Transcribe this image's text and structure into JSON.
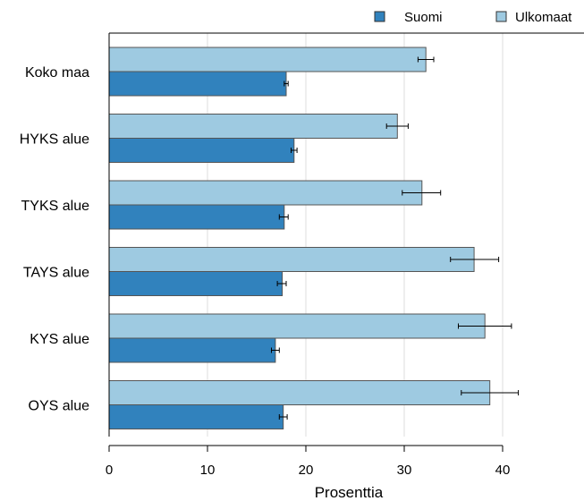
{
  "chart_data": {
    "type": "bar",
    "orientation": "horizontal",
    "categories": [
      "Koko maa",
      "HYKS alue",
      "TYKS alue",
      "TAYS alue",
      "KYS alue",
      "OYS alue"
    ],
    "series": [
      {
        "name": "Suomi",
        "color": "#3182bd",
        "values": [
          18.0,
          18.8,
          17.8,
          17.6,
          16.9,
          17.7
        ],
        "error_low": [
          17.8,
          18.5,
          17.3,
          17.1,
          16.5,
          17.3
        ],
        "error_high": [
          18.2,
          19.1,
          18.2,
          18.0,
          17.3,
          18.1
        ]
      },
      {
        "name": "Ulkomaat",
        "color": "#9ecae1",
        "values": [
          32.2,
          29.3,
          31.8,
          37.1,
          38.2,
          38.7
        ],
        "error_low": [
          31.4,
          28.2,
          29.8,
          34.7,
          35.5,
          35.8
        ],
        "error_high": [
          33.0,
          30.4,
          33.7,
          39.6,
          40.9,
          41.6
        ]
      }
    ],
    "xlabel": "Prosenttia",
    "xticks": [
      0,
      10,
      20,
      30,
      40
    ],
    "xlim": [
      0,
      48
    ],
    "grid": "vertical",
    "legend": {
      "placement": "top-right"
    }
  }
}
